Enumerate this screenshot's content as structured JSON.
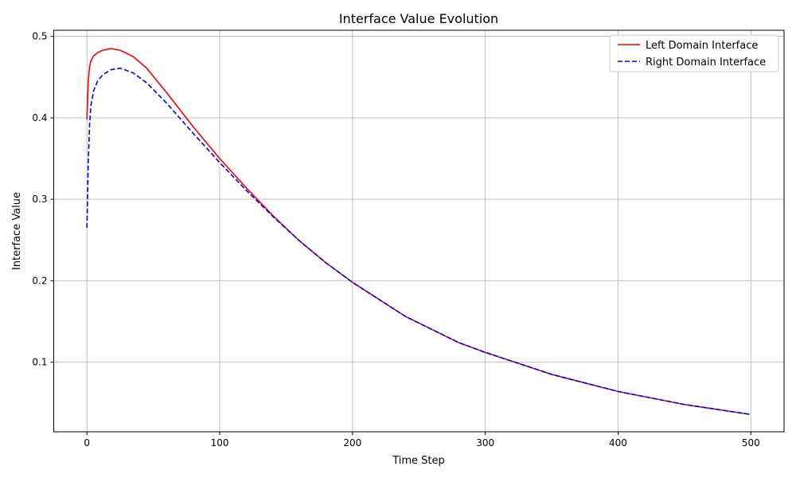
{
  "chart_data": {
    "type": "line",
    "title": "Interface Value Evolution",
    "xlabel": "Time Step",
    "ylabel": "Interface Value",
    "xlim": [
      -25,
      525
    ],
    "ylim": [
      0.0145,
      0.5075
    ],
    "xticks": [
      0,
      100,
      200,
      300,
      400,
      500
    ],
    "yticks": [
      0.1,
      0.2,
      0.3,
      0.4,
      0.5
    ],
    "xtick_labels": [
      "0",
      "100",
      "200",
      "300",
      "400",
      "500"
    ],
    "ytick_labels": [
      "0.1",
      "0.2",
      "0.3",
      "0.4",
      "0.5"
    ],
    "grid": true,
    "legend_position": "top-right",
    "series": [
      {
        "name": "Left Domain Interface",
        "color": "#ff0000",
        "style": "solid",
        "x": [
          0,
          1,
          2,
          3,
          5,
          8,
          12,
          18,
          25,
          35,
          45,
          60,
          80,
          100,
          120,
          140,
          160,
          180,
          200,
          240,
          280,
          300,
          350,
          400,
          450,
          499
        ],
        "y": [
          0.398,
          0.445,
          0.463,
          0.47,
          0.476,
          0.48,
          0.483,
          0.485,
          0.483,
          0.475,
          0.461,
          0.431,
          0.389,
          0.35,
          0.314,
          0.28,
          0.249,
          0.222,
          0.198,
          0.156,
          0.124,
          0.112,
          0.085,
          0.064,
          0.048,
          0.036
        ]
      },
      {
        "name": "Right Domain Interface",
        "color": "#0000ff",
        "style": "dashed",
        "x": [
          0,
          1,
          2,
          3,
          5,
          8,
          12,
          18,
          25,
          35,
          45,
          60,
          80,
          100,
          120,
          140,
          160,
          180,
          200,
          240,
          280,
          300,
          350,
          400,
          450,
          499
        ],
        "y": [
          0.265,
          0.345,
          0.392,
          0.415,
          0.433,
          0.445,
          0.453,
          0.459,
          0.461,
          0.455,
          0.443,
          0.418,
          0.381,
          0.345,
          0.311,
          0.279,
          0.249,
          0.222,
          0.198,
          0.156,
          0.124,
          0.112,
          0.085,
          0.064,
          0.048,
          0.036
        ]
      }
    ]
  }
}
